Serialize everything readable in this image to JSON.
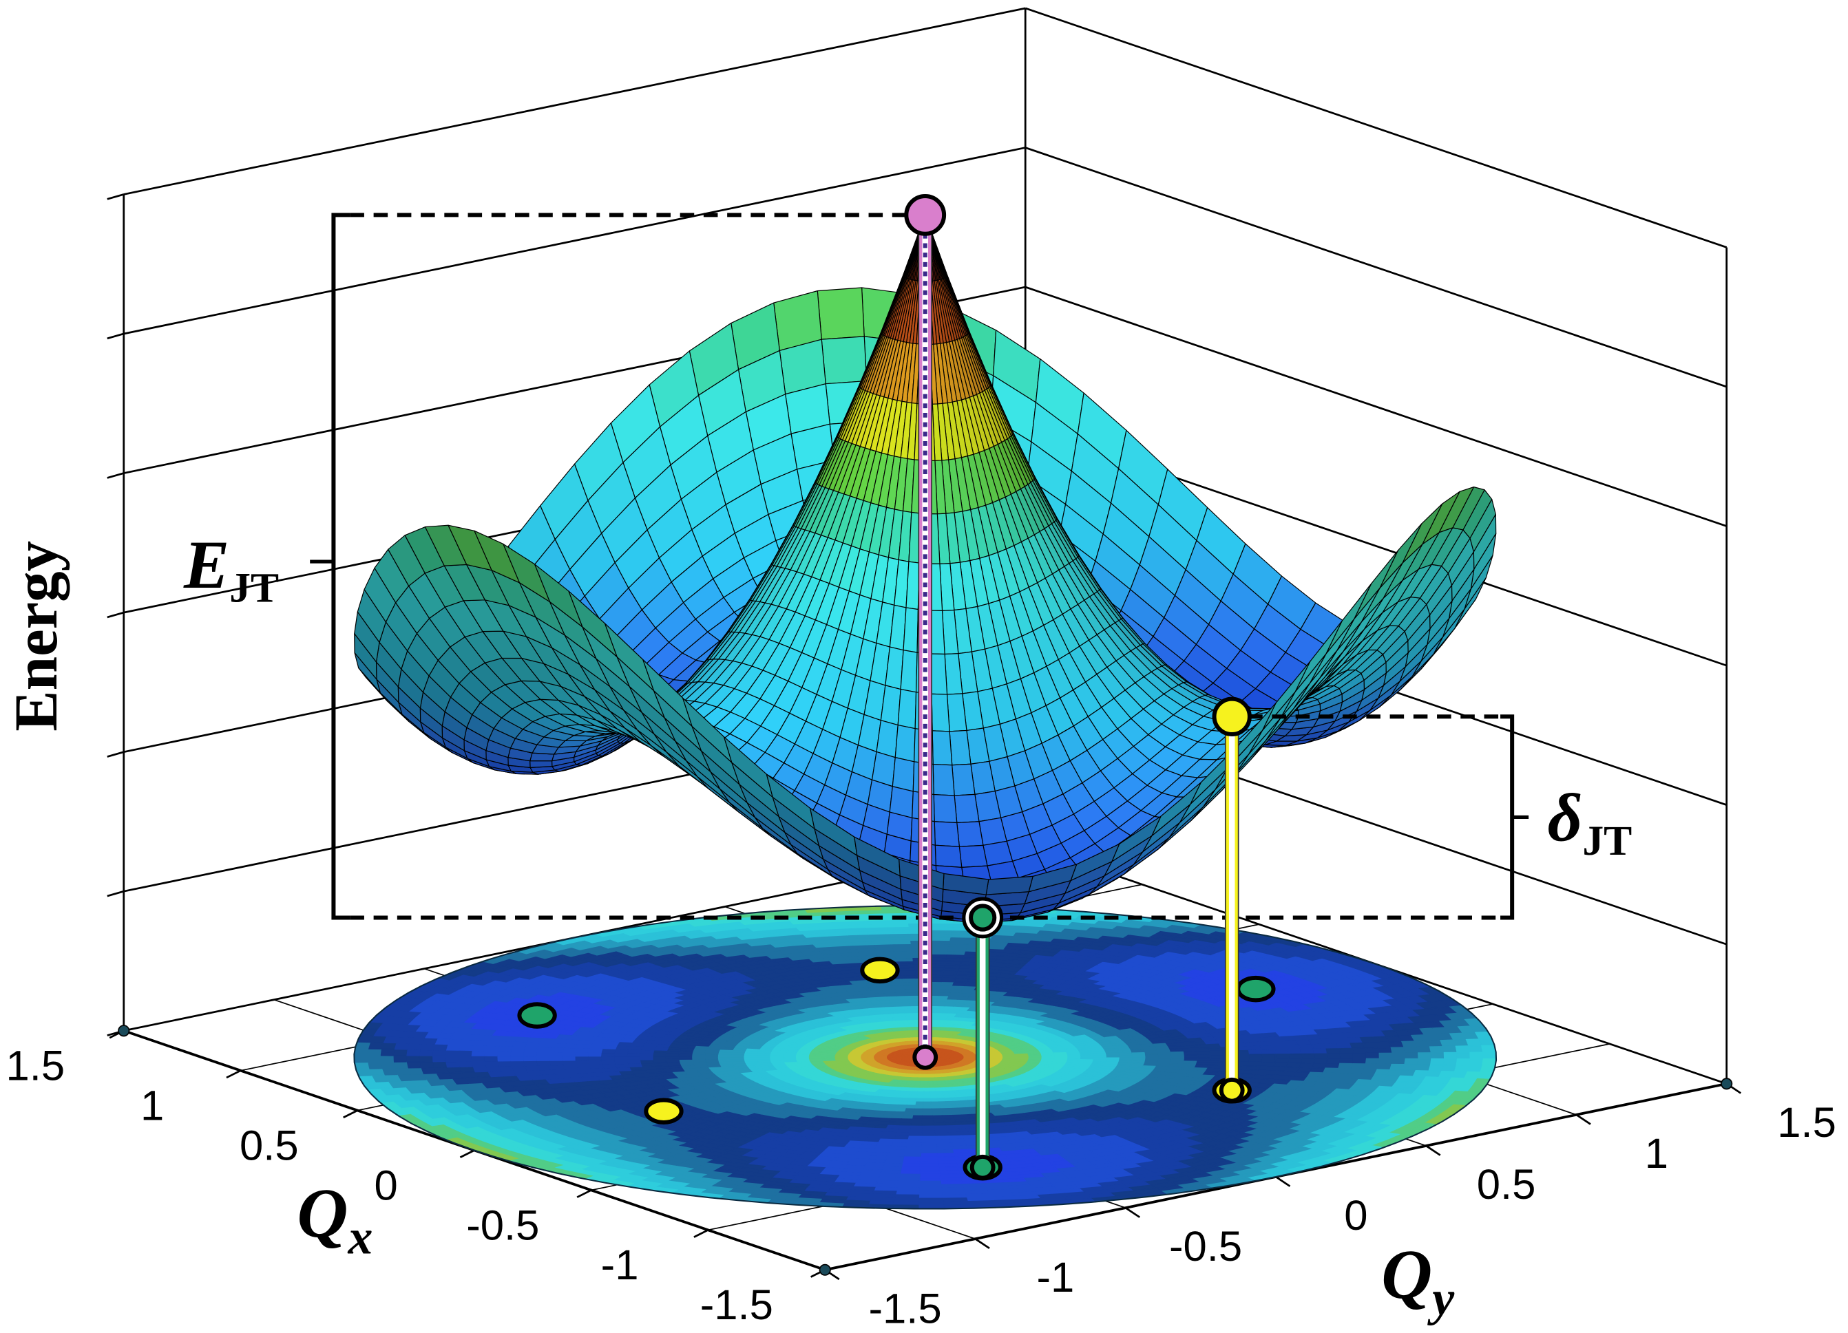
{
  "chart_data": {
    "type": "surface3d",
    "zlabel": "Energy",
    "xlabel": {
      "text": "Q",
      "sub": "x"
    },
    "ylabel": {
      "text": "Q",
      "sub": "y"
    },
    "xlim": [
      -1.5,
      1.5
    ],
    "ylim": [
      -1.5,
      1.5
    ],
    "xticks": [
      -1.5,
      -1,
      -0.5,
      0,
      0.5,
      1,
      1.5
    ],
    "yticks": [
      -1.5,
      -1,
      -0.5,
      0,
      0.5,
      1,
      1.5
    ],
    "annotations": [
      {
        "text": "E",
        "sub": "JT"
      },
      {
        "text": "δ",
        "sub": "JT"
      }
    ],
    "peak": {
      "x": 0,
      "y": 0,
      "color": "#d97fcc"
    },
    "minima": {
      "x": [
        0,
        0.953,
        -0.953
      ],
      "y": [
        1.1,
        -0.55,
        -0.55
      ],
      "color": "#1fa46a"
    },
    "saddles": {
      "x": [
        0.753,
        -0.753,
        0
      ],
      "y": [
        0.435,
        0.435,
        -0.87
      ],
      "color": "#f6f21e"
    }
  }
}
